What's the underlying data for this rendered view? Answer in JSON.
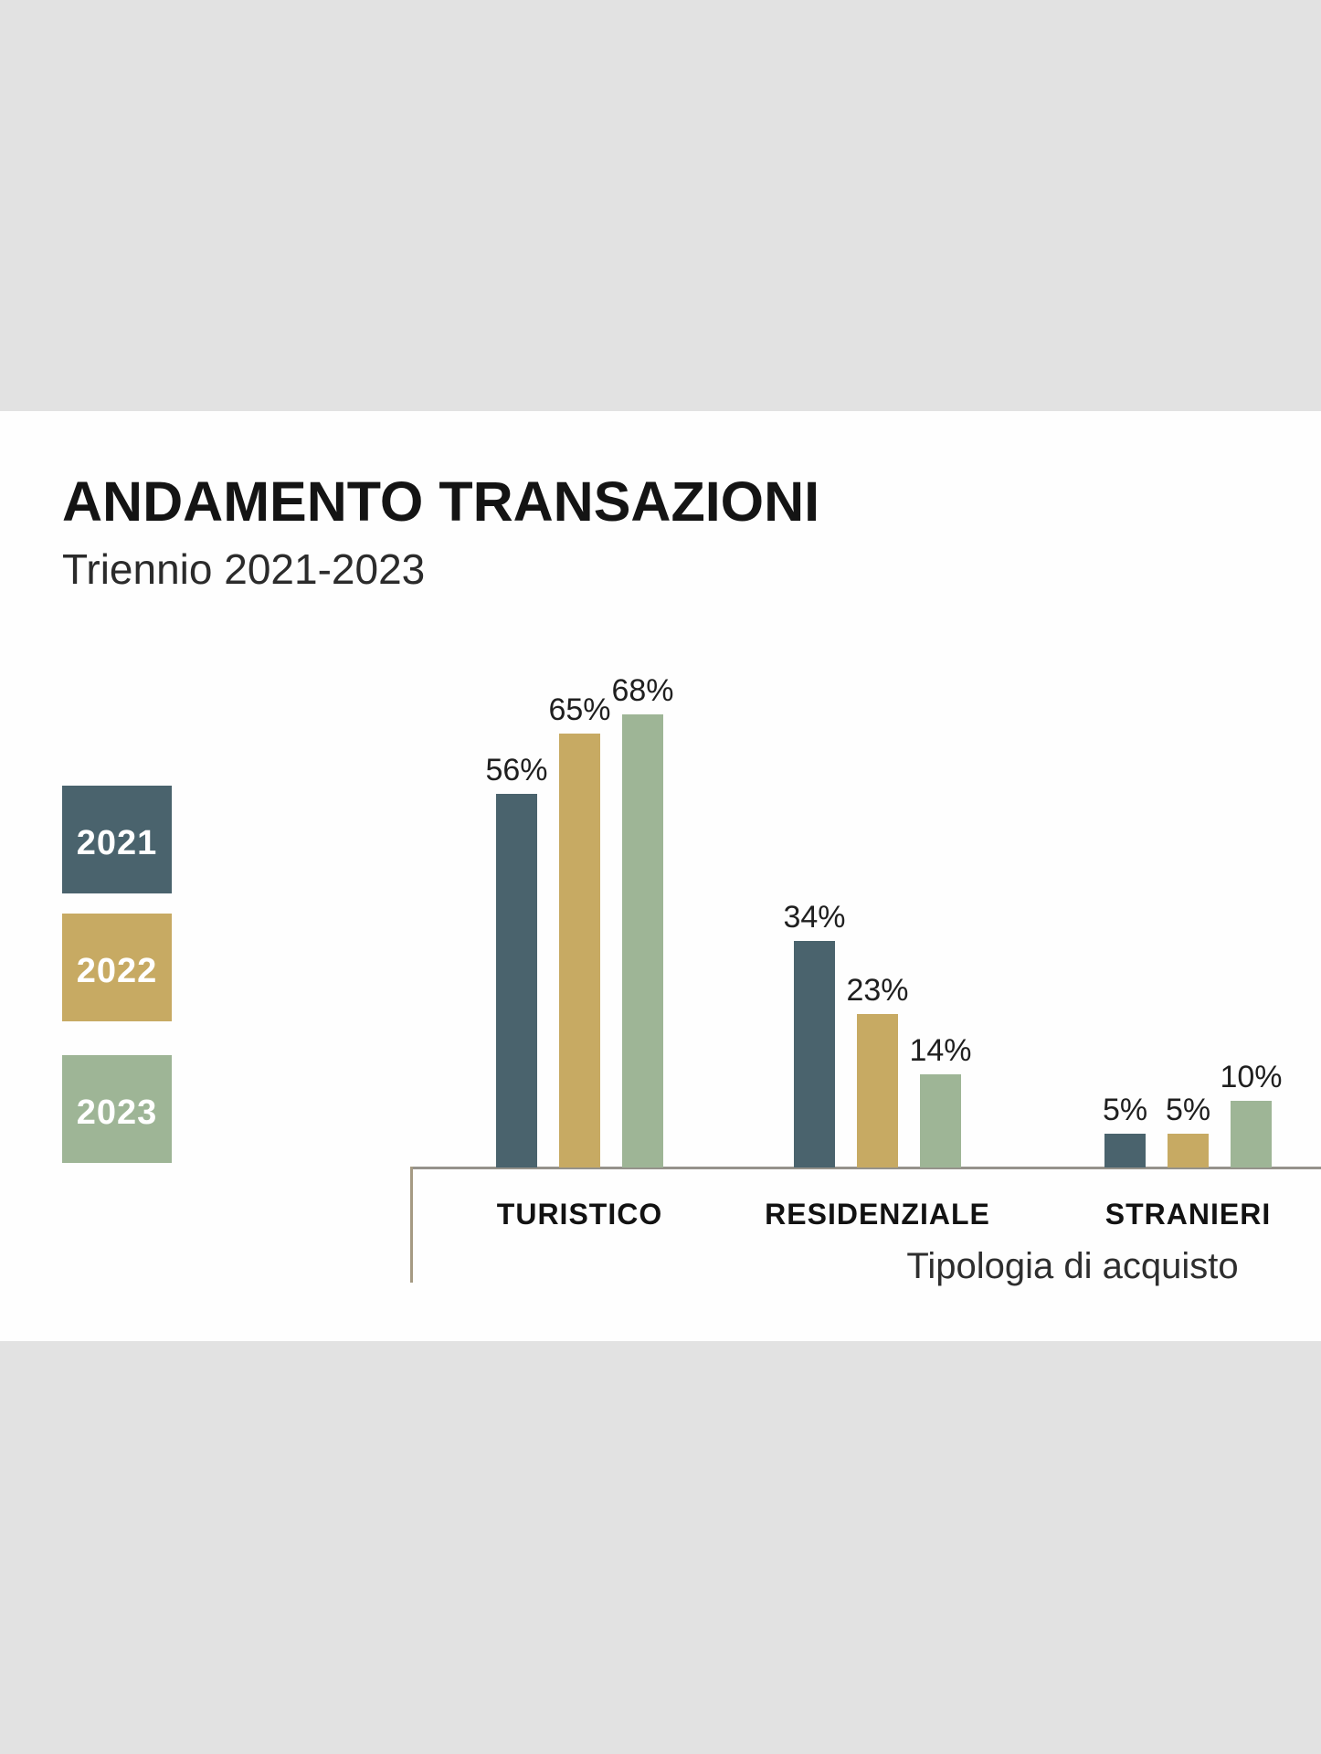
{
  "header": {
    "title": "ANDAMENTO TRANSAZIONI",
    "subtitle": "Triennio 2021-2023"
  },
  "legend": {
    "position": "left",
    "items": [
      {
        "label": "2021",
        "color": "#4a636d"
      },
      {
        "label": "2022",
        "color": "#c7aa63"
      },
      {
        "label": "2023",
        "color": "#9eb596"
      }
    ]
  },
  "chart_data": {
    "type": "bar",
    "title": "ANDAMENTO TRANSAZIONI",
    "subtitle": "Triennio 2021-2023",
    "categories": [
      "TURISTICO",
      "RESIDENZIALE",
      "STRANIERI"
    ],
    "series": [
      {
        "name": "2021",
        "color": "#4a636d",
        "values": [
          56,
          34,
          5
        ]
      },
      {
        "name": "2022",
        "color": "#c7aa63",
        "values": [
          65,
          23,
          5
        ]
      },
      {
        "name": "2023",
        "color": "#9eb596",
        "values": [
          68,
          14,
          10
        ]
      }
    ],
    "value_suffix": "%",
    "data_labels": true,
    "xlabel": "Tipologia di acquisto",
    "ylabel": "",
    "ylim": [
      0,
      70
    ],
    "grid": false,
    "legend_position": "left"
  },
  "colors": {
    "page_band": "#e2e2e2",
    "content_background": "#fefefe",
    "axis_line_horizontal": "#95928b",
    "axis_line_vertical": "#a59a83"
  }
}
